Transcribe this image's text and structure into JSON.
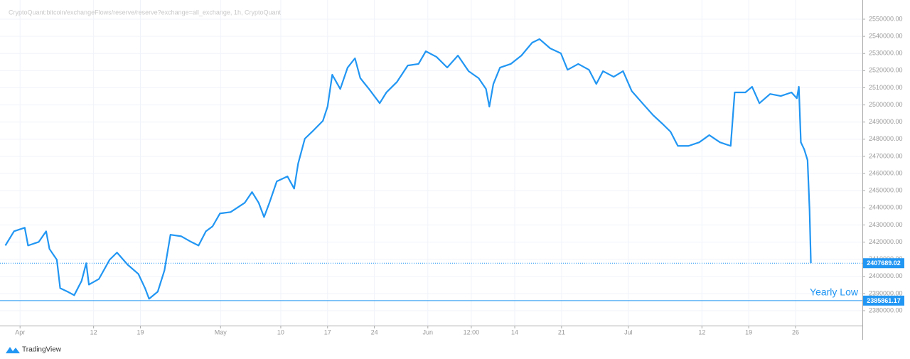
{
  "chart_data": {
    "type": "line",
    "title": "CryptoQuant:bitcoin/exchangeFlows/reserve/reserve?exchange=all_exchange, 1h, CryptoQuant",
    "brand": "TradingView",
    "x": [
      -2.2,
      -0.9,
      0.7,
      1.2,
      2.8,
      3.9,
      4.4,
      5.5,
      6.0,
      7.1,
      8.1,
      9.2,
      9.9,
      10.3,
      11.8,
      13.4,
      14.5,
      16.1,
      17.7,
      18.7,
      19.3,
      20.6,
      21.6,
      22.5,
      24.1,
      25.6,
      26.7,
      27.8,
      28.8,
      29.9,
      31.5,
      33.6,
      34.7,
      35.7,
      36.5,
      37.3,
      38.4,
      40.0,
      41.0,
      41.6,
      42.6,
      43.7,
      45.3,
      46.0,
      46.7,
      47.9,
      49.0,
      50.1,
      50.9,
      52.2,
      53.8,
      54.8,
      56.4,
      58.0,
      59.6,
      60.7,
      62.3,
      63.9,
      65.5,
      67.1,
      68.6,
      69.7,
      70.2,
      70.8,
      71.8,
      73.4,
      75.0,
      76.6,
      77.7,
      79.3,
      80.9,
      81.9,
      83.5,
      85.1,
      86.2,
      87.2,
      88.8,
      90.2,
      91.5,
      93.1,
      94.7,
      96.2,
      97.3,
      98.4,
      100.0,
      101.6,
      103.1,
      104.7,
      106.3,
      106.9,
      108.5,
      109.5,
      110.6,
      112.2,
      113.8,
      115.4,
      116.2,
      116.5,
      116.8,
      117.3,
      117.8,
      118.1,
      118.3
    ],
    "series": [
      {
        "name": "Reserve",
        "color": "#2196f3",
        "values": [
          2418000,
          2426300,
          2428400,
          2418000,
          2420100,
          2426300,
          2416000,
          2409700,
          2393100,
          2391100,
          2389000,
          2397300,
          2407700,
          2395200,
          2398500,
          2409700,
          2413900,
          2406800,
          2401400,
          2393100,
          2386900,
          2391100,
          2403500,
          2424300,
          2423400,
          2420100,
          2418000,
          2426300,
          2429200,
          2436700,
          2437500,
          2442900,
          2449200,
          2442900,
          2434600,
          2442900,
          2455400,
          2458300,
          2451200,
          2465800,
          2480300,
          2484400,
          2490700,
          2499000,
          2517600,
          2509300,
          2521800,
          2527200,
          2515600,
          2509300,
          2501000,
          2507300,
          2513500,
          2523000,
          2523900,
          2531300,
          2528000,
          2521800,
          2528800,
          2519700,
          2515600,
          2509300,
          2499000,
          2512200,
          2521800,
          2523900,
          2528800,
          2536300,
          2538400,
          2533000,
          2530100,
          2520500,
          2523900,
          2520500,
          2512200,
          2519700,
          2516400,
          2519700,
          2508100,
          2501000,
          2494000,
          2488600,
          2484400,
          2476100,
          2476100,
          2478200,
          2482400,
          2478200,
          2476100,
          2507300,
          2507300,
          2510600,
          2501000,
          2506400,
          2505200,
          2507300,
          2503900,
          2510600,
          2478200,
          2474100,
          2467800,
          2438800,
          2407689.02
        ]
      }
    ],
    "xlim": [
      -3,
      126
    ],
    "xticks": [
      {
        "value": 0,
        "label": "Apr"
      },
      {
        "value": 11,
        "label": "12"
      },
      {
        "value": 18,
        "label": "19"
      },
      {
        "value": 30,
        "label": "May"
      },
      {
        "value": 39,
        "label": "10"
      },
      {
        "value": 46,
        "label": "17"
      },
      {
        "value": 53,
        "label": "24"
      },
      {
        "value": 61,
        "label": "Jun"
      },
      {
        "value": 67.5,
        "label": "12:00"
      },
      {
        "value": 74,
        "label": "14"
      },
      {
        "value": 81,
        "label": "21"
      },
      {
        "value": 91,
        "label": "Jul"
      },
      {
        "value": 102,
        "label": "12"
      },
      {
        "value": 109,
        "label": "19"
      },
      {
        "value": 116,
        "label": "26"
      }
    ],
    "ylim": [
      2371300,
      2561200
    ],
    "yticks": [
      {
        "value": 2380000,
        "label": "2380000.00"
      },
      {
        "value": 2390000,
        "label": "2390000.00"
      },
      {
        "value": 2400000,
        "label": "2400000.00"
      },
      {
        "value": 2410000,
        "label": "2410000.00"
      },
      {
        "value": 2420000,
        "label": "2420000.00"
      },
      {
        "value": 2430000,
        "label": "2430000.00"
      },
      {
        "value": 2440000,
        "label": "2440000.00"
      },
      {
        "value": 2450000,
        "label": "2450000.00"
      },
      {
        "value": 2460000,
        "label": "2460000.00"
      },
      {
        "value": 2470000,
        "label": "2470000.00"
      },
      {
        "value": 2480000,
        "label": "2480000.00"
      },
      {
        "value": 2490000,
        "label": "2490000.00"
      },
      {
        "value": 2500000,
        "label": "2500000.00"
      },
      {
        "value": 2510000,
        "label": "2510000.00"
      },
      {
        "value": 2520000,
        "label": "2520000.00"
      },
      {
        "value": 2530000,
        "label": "2530000.00"
      },
      {
        "value": 2540000,
        "label": "2540000.00"
      },
      {
        "value": 2550000,
        "label": "2550000.00"
      }
    ],
    "grid": true,
    "price_lines": [
      {
        "value": 2407689.02,
        "style": "dotted",
        "color": "#2196f3"
      },
      {
        "value": 2385861.17,
        "style": "solid",
        "color": "#2196f3",
        "name": "Yearly Low"
      }
    ]
  }
}
